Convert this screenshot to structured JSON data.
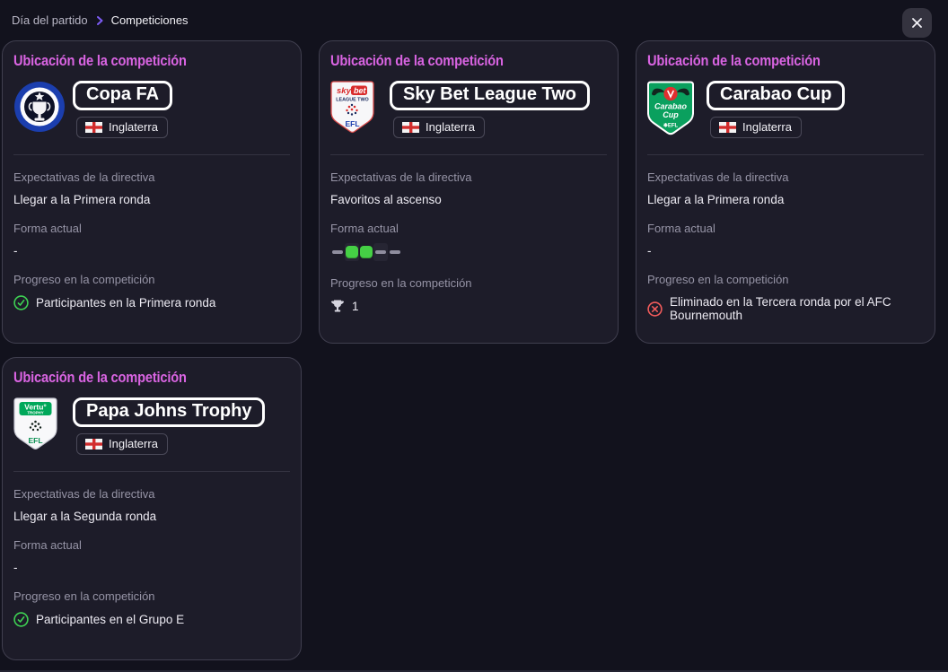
{
  "breadcrumb": {
    "parent": "Día del partido",
    "current": "Competiciones"
  },
  "close_button": {
    "icon": "close-x"
  },
  "section_title": "Ubicación de la competición",
  "labels": {
    "expectations": "Expectativas de la directiva",
    "form": "Forma actual",
    "progress": "Progreso en la competición"
  },
  "cards": [
    {
      "name": "Copa FA",
      "country": "Inglaterra",
      "logo": "copa-fa-badge",
      "expectation": "Llegar a la Primera ronda",
      "form": "-",
      "progress": {
        "icon": "check-circle",
        "text": "Participantes en la Primera ronda"
      }
    },
    {
      "name": "Sky Bet League Two",
      "country": "Inglaterra",
      "logo": "sky-bet-league-two-badge",
      "expectation": "Favoritos al ascenso",
      "form_results": [
        "draw",
        "win",
        "win",
        "draw",
        "draw"
      ],
      "progress": {
        "icon": "trophy",
        "text": "1"
      }
    },
    {
      "name": "Carabao Cup",
      "country": "Inglaterra",
      "logo": "carabao-cup-badge",
      "expectation": "Llegar a la Primera ronda",
      "form": "-",
      "progress": {
        "icon": "cross-circle",
        "text": "Eliminado en la Tercera ronda por el AFC Bournemouth"
      }
    },
    {
      "name": "Papa Johns Trophy",
      "country": "Inglaterra",
      "logo": "papa-johns-trophy-badge",
      "expectation": "Llegar a la Segunda ronda",
      "form": "-",
      "progress": {
        "icon": "check-circle",
        "text": "Participantes en el Grupo E"
      }
    }
  ],
  "colors": {
    "accent_pink": "#d964e2",
    "accent_purple": "#7d5cf5",
    "positive_green": "#45d045",
    "negative_red": "#f15b5b",
    "card_bg": "#1d1c29",
    "page_bg": "#12121d"
  }
}
